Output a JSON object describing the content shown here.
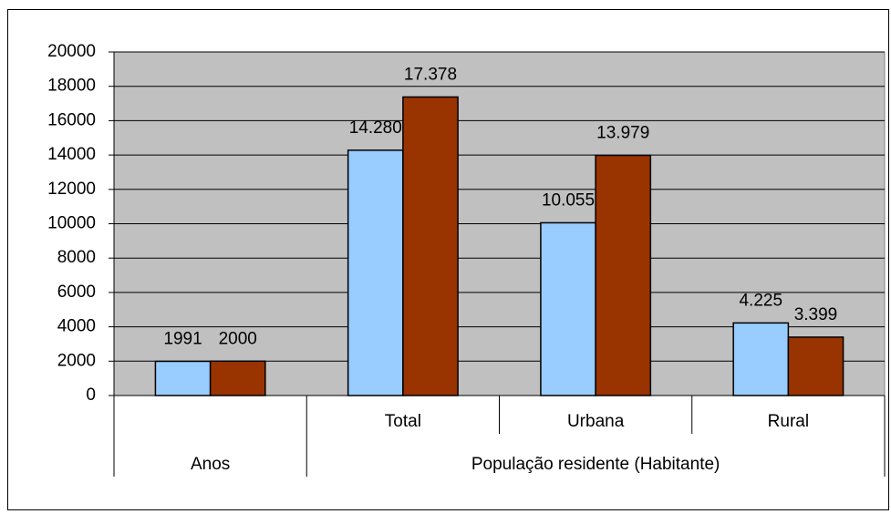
{
  "chart_data": {
    "type": "bar",
    "category_groups": [
      {
        "label": "Anos",
        "categories": [
          null
        ]
      },
      {
        "label": "População residente (Habitante)",
        "categories": [
          "Total",
          "Urbana",
          "Rural"
        ]
      }
    ],
    "series": [
      {
        "color": "#99ccff",
        "values": [
          1991,
          14280,
          10055,
          4225
        ],
        "value_labels": [
          "1991",
          "14.280",
          "10.055",
          "4.225"
        ]
      },
      {
        "color": "#993300",
        "values": [
          2000,
          17378,
          13979,
          3399
        ],
        "value_labels": [
          "2000",
          "17.378",
          "13.979",
          "3.399"
        ]
      }
    ],
    "ylim": [
      0,
      20000
    ],
    "yticks": [
      0,
      2000,
      4000,
      6000,
      8000,
      10000,
      12000,
      14000,
      16000,
      18000,
      20000
    ],
    "grid": true,
    "plot_background": "#c0c0c0"
  }
}
